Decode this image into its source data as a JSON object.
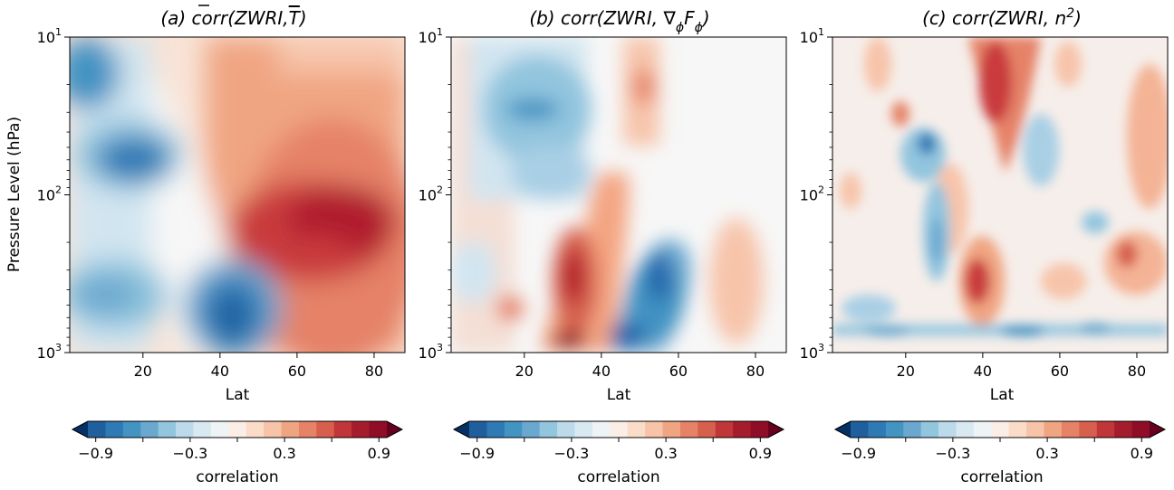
{
  "chart_data": [
    {
      "type": "heatmap",
      "title_prefix": "(a)",
      "title_text": "corr(ZWRI,",
      "title_symbol": "T",
      "title_suffix": ")",
      "xlabel": "Lat",
      "ylabel": "Pressure Level (hPa)",
      "x_ticks": [
        "20",
        "40",
        "60",
        "80"
      ],
      "xlim": [
        1,
        88
      ],
      "y_scale": "log",
      "ylim": [
        1000,
        10
      ],
      "y_ticks": [
        "10",
        "10",
        "10"
      ],
      "y_tick_exponents": [
        "1",
        "2",
        "3"
      ],
      "colorbar_label": "correlation",
      "colorbar_ticks": [
        "−0.9",
        "−0.3",
        "0.3",
        "0.9"
      ],
      "features": [
        {
          "lat": 7,
          "p": 19,
          "r": -0.75
        },
        {
          "lat": 22,
          "p": 65,
          "r": -0.8
        },
        {
          "lat": 10,
          "p": 140,
          "r": -0.35
        },
        {
          "lat": 15,
          "p": 450,
          "r": -0.6
        },
        {
          "lat": 45,
          "p": 550,
          "r": -0.9
        },
        {
          "lat": 68,
          "p": 160,
          "r": 0.95
        },
        {
          "lat": 75,
          "p": 400,
          "r": 0.7
        },
        {
          "lat": 55,
          "p": 25,
          "r": 0.45
        },
        {
          "lat": 80,
          "p": 15,
          "r": 0.3
        }
      ]
    },
    {
      "type": "heatmap",
      "title_prefix": "(b)",
      "title_text": "corr(ZWRI, ∇",
      "title_sub1": "ϕ",
      "title_mid": "F",
      "title_sub2": "ϕ",
      "title_suffix": ")",
      "xlabel": "Lat",
      "x_ticks": [
        "20",
        "40",
        "60",
        "80"
      ],
      "xlim": [
        1,
        88
      ],
      "y_scale": "log",
      "ylim": [
        1000,
        10
      ],
      "y_ticks": [
        "10",
        "10",
        "10"
      ],
      "y_tick_exponents": [
        "1",
        "2",
        "3"
      ],
      "colorbar_label": "correlation",
      "colorbar_ticks": [
        "−0.9",
        "−0.3",
        "0.3",
        "0.9"
      ],
      "features": [
        {
          "lat": 22,
          "p": 30,
          "r": -0.6
        },
        {
          "lat": 33,
          "p": 420,
          "r": 0.8
        },
        {
          "lat": 34,
          "p": 950,
          "r": 0.9
        },
        {
          "lat": 52,
          "p": 500,
          "r": -0.85
        },
        {
          "lat": 45,
          "p": 900,
          "r": -0.8
        },
        {
          "lat": 55,
          "p": 30,
          "r": 0.5
        },
        {
          "lat": 38,
          "p": 120,
          "r": 0.5
        },
        {
          "lat": 78,
          "p": 400,
          "r": 0.35
        },
        {
          "lat": 10,
          "p": 250,
          "r": -0.3
        }
      ]
    },
    {
      "type": "heatmap",
      "title_prefix": "(c)",
      "title_text": "corr(ZWRI, n",
      "title_sup": "2",
      "title_suffix": ")",
      "xlabel": "Lat",
      "x_ticks": [
        "20",
        "40",
        "60",
        "80"
      ],
      "xlim": [
        1,
        88
      ],
      "y_scale": "log",
      "ylim": [
        1000,
        10
      ],
      "y_ticks": [
        "10",
        "10",
        "10"
      ],
      "y_tick_exponents": [
        "1",
        "2",
        "3"
      ],
      "colorbar_label": "correlation",
      "colorbar_ticks": [
        "−0.9",
        "−0.3",
        "0.3",
        "0.9"
      ],
      "features": [
        {
          "lat": 45,
          "p": 20,
          "r": 0.75
        },
        {
          "lat": 39,
          "p": 400,
          "r": 0.8
        },
        {
          "lat": 25,
          "p": 60,
          "r": -0.75
        },
        {
          "lat": 27,
          "p": 200,
          "r": -0.5
        },
        {
          "lat": 60,
          "p": 80,
          "r": -0.45
        },
        {
          "lat": 80,
          "p": 350,
          "r": 0.45
        },
        {
          "lat": 50,
          "p": 900,
          "r": -0.5
        },
        {
          "lat": 30,
          "p": 75,
          "r": 0.45
        },
        {
          "lat": 85,
          "p": 30,
          "r": 0.4
        }
      ]
    }
  ]
}
